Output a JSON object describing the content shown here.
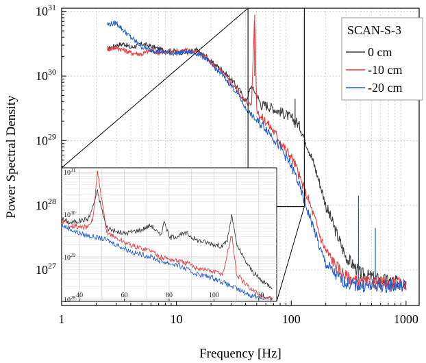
{
  "chart_data": {
    "type": "line",
    "xlabel": "Frequency [Hz]",
    "ylabel": "Power Spectral Density",
    "x_scale": "log",
    "y_scale": "log",
    "xlim": [
      1,
      1300
    ],
    "ylim_log10": [
      26.45,
      31.05
    ],
    "x_ticks": [
      {
        "value": 1,
        "label": "1"
      },
      {
        "value": 10,
        "label": "10"
      },
      {
        "value": 100,
        "label": "100"
      },
      {
        "value": 1000,
        "label": "1000"
      }
    ],
    "y_ticks": [
      {
        "exp": 27,
        "base": "10",
        "sup": "27"
      },
      {
        "exp": 28,
        "base": "10",
        "sup": "28"
      },
      {
        "exp": 29,
        "base": "10",
        "sup": "29"
      },
      {
        "exp": 30,
        "base": "10",
        "sup": "30"
      },
      {
        "exp": 31,
        "base": "10",
        "sup": "31"
      }
    ],
    "grid": true,
    "legend": {
      "title": "SCAN-S-3",
      "placement": "top-right",
      "entries": [
        "0 cm",
        "-10 cm",
        "-20 cm"
      ]
    },
    "series": [
      {
        "name": "0 cm",
        "color": "#3a3a3a",
        "points": [
          [
            2.5,
            30.42
          ],
          [
            3,
            30.48
          ],
          [
            3.5,
            30.5
          ],
          [
            4,
            30.44
          ],
          [
            5,
            30.5
          ],
          [
            6,
            30.46
          ],
          [
            7,
            30.42
          ],
          [
            8,
            30.4
          ],
          [
            10,
            30.38
          ],
          [
            12,
            30.36
          ],
          [
            15,
            30.4
          ],
          [
            18,
            30.3
          ],
          [
            20,
            30.22
          ],
          [
            25,
            30.1
          ],
          [
            30,
            29.95
          ],
          [
            35,
            29.8
          ],
          [
            40,
            29.6
          ],
          [
            45,
            29.85
          ],
          [
            50,
            29.7
          ],
          [
            55,
            29.55
          ],
          [
            60,
            29.55
          ],
          [
            70,
            29.5
          ],
          [
            80,
            29.45
          ],
          [
            90,
            29.4
          ],
          [
            100,
            29.35
          ],
          [
            110,
            29.3
          ],
          [
            120,
            29.2
          ],
          [
            140,
            28.9
          ],
          [
            160,
            28.6
          ],
          [
            180,
            28.3
          ],
          [
            200,
            28.0
          ],
          [
            250,
            27.55
          ],
          [
            300,
            27.2
          ],
          [
            400,
            26.95
          ],
          [
            600,
            26.85
          ],
          [
            1000,
            26.8
          ]
        ]
      },
      {
        "name": "-10 cm",
        "color": "#e8393c",
        "points": [
          [
            2.5,
            30.42
          ],
          [
            3,
            30.44
          ],
          [
            3.5,
            30.4
          ],
          [
            4,
            30.36
          ],
          [
            5,
            30.34
          ],
          [
            6,
            30.4
          ],
          [
            7,
            30.36
          ],
          [
            8,
            30.36
          ],
          [
            10,
            30.38
          ],
          [
            12,
            30.4
          ],
          [
            15,
            30.38
          ],
          [
            18,
            30.3
          ],
          [
            20,
            30.2
          ],
          [
            25,
            30.05
          ],
          [
            30,
            29.9
          ],
          [
            35,
            29.75
          ],
          [
            40,
            29.6
          ],
          [
            45,
            29.55
          ],
          [
            48,
            30.95
          ],
          [
            50,
            29.5
          ],
          [
            55,
            29.35
          ],
          [
            60,
            29.3
          ],
          [
            70,
            29.15
          ],
          [
            80,
            29.0
          ],
          [
            90,
            28.85
          ],
          [
            100,
            28.75
          ],
          [
            110,
            28.6
          ],
          [
            120,
            28.4
          ],
          [
            140,
            28.1
          ],
          [
            160,
            27.8
          ],
          [
            180,
            27.5
          ],
          [
            200,
            27.3
          ],
          [
            250,
            27.05
          ],
          [
            300,
            26.9
          ],
          [
            400,
            26.8
          ],
          [
            600,
            26.8
          ],
          [
            1000,
            26.78
          ]
        ]
      },
      {
        "name": "-20 cm",
        "color": "#1f5fd1",
        "points": [
          [
            2.5,
            30.8
          ],
          [
            3,
            30.82
          ],
          [
            3.5,
            30.7
          ],
          [
            4,
            30.6
          ],
          [
            5,
            30.45
          ],
          [
            6,
            30.4
          ],
          [
            7,
            30.38
          ],
          [
            8,
            30.36
          ],
          [
            10,
            30.35
          ],
          [
            12,
            30.38
          ],
          [
            15,
            30.35
          ],
          [
            18,
            30.28
          ],
          [
            20,
            30.18
          ],
          [
            25,
            30.02
          ],
          [
            30,
            29.85
          ],
          [
            35,
            29.7
          ],
          [
            40,
            29.5
          ],
          [
            45,
            29.4
          ],
          [
            50,
            29.3
          ],
          [
            55,
            29.25
          ],
          [
            60,
            29.2
          ],
          [
            70,
            29.05
          ],
          [
            80,
            28.9
          ],
          [
            90,
            28.75
          ],
          [
            100,
            28.6
          ],
          [
            110,
            28.45
          ],
          [
            120,
            28.25
          ],
          [
            140,
            27.9
          ],
          [
            160,
            27.6
          ],
          [
            180,
            27.3
          ],
          [
            200,
            27.1
          ],
          [
            250,
            26.9
          ],
          [
            300,
            26.8
          ],
          [
            400,
            26.75
          ],
          [
            600,
            26.75
          ],
          [
            1000,
            26.75
          ]
        ]
      }
    ],
    "inset": {
      "xlim": [
        32,
        128
      ],
      "x_ticks": [
        {
          "value": 40,
          "label": "40"
        },
        {
          "value": 60,
          "label": "60"
        },
        {
          "value": 80,
          "label": "80"
        },
        {
          "value": 100,
          "label": "100"
        },
        {
          "value": 120,
          "label": "120"
        }
      ],
      "ylim_log10": [
        27.95,
        31.1
      ],
      "y_ticks": [
        {
          "exp": 28,
          "base": "10",
          "sup": "28"
        },
        {
          "exp": 29,
          "base": "10",
          "sup": "29"
        },
        {
          "exp": 30,
          "base": "10",
          "sup": "30"
        },
        {
          "exp": 31,
          "base": "10",
          "sup": "31"
        }
      ],
      "source_region": {
        "xlim": [
          42,
          130
        ],
        "ylim_log10": [
          27.98,
          31.05
        ]
      },
      "series": [
        {
          "name": "0 cm",
          "color": "#3a3a3a",
          "points": [
            [
              32,
              29.9
            ],
            [
              36,
              29.8
            ],
            [
              40,
              29.85
            ],
            [
              44,
              29.9
            ],
            [
              46,
              30.2
            ],
            [
              48,
              30.55
            ],
            [
              50,
              30.1
            ],
            [
              52,
              29.7
            ],
            [
              56,
              29.6
            ],
            [
              60,
              29.55
            ],
            [
              64,
              29.6
            ],
            [
              68,
              29.65
            ],
            [
              72,
              29.75
            ],
            [
              76,
              29.5
            ],
            [
              78,
              29.85
            ],
            [
              80,
              29.45
            ],
            [
              84,
              29.5
            ],
            [
              88,
              29.55
            ],
            [
              92,
              29.4
            ],
            [
              96,
              29.35
            ],
            [
              100,
              29.3
            ],
            [
              104,
              29.25
            ],
            [
              106,
              29.4
            ],
            [
              108,
              30.0
            ],
            [
              110,
              29.3
            ],
            [
              114,
              28.9
            ],
            [
              118,
              28.6
            ],
            [
              122,
              28.4
            ],
            [
              126,
              28.3
            ]
          ]
        },
        {
          "name": "-10 cm",
          "color": "#e8393c",
          "points": [
            [
              32,
              29.85
            ],
            [
              36,
              29.75
            ],
            [
              40,
              29.7
            ],
            [
              44,
              29.7
            ],
            [
              46,
              29.9
            ],
            [
              48,
              31.0
            ],
            [
              50,
              30.3
            ],
            [
              52,
              29.6
            ],
            [
              56,
              29.45
            ],
            [
              60,
              29.35
            ],
            [
              64,
              29.25
            ],
            [
              68,
              29.2
            ],
            [
              72,
              29.15
            ],
            [
              76,
              29.0
            ],
            [
              80,
              28.95
            ],
            [
              84,
              28.9
            ],
            [
              88,
              28.85
            ],
            [
              92,
              28.75
            ],
            [
              96,
              28.7
            ],
            [
              100,
              28.65
            ],
            [
              104,
              28.6
            ],
            [
              108,
              29.55
            ],
            [
              110,
              28.6
            ],
            [
              114,
              28.35
            ],
            [
              118,
              28.2
            ],
            [
              122,
              28.05
            ],
            [
              126,
              28.0
            ]
          ]
        },
        {
          "name": "-20 cm",
          "color": "#1f5fd1",
          "points": [
            [
              32,
              29.75
            ],
            [
              36,
              29.65
            ],
            [
              40,
              29.55
            ],
            [
              44,
              29.5
            ],
            [
              48,
              29.45
            ],
            [
              52,
              29.4
            ],
            [
              56,
              29.3
            ],
            [
              60,
              29.2
            ],
            [
              64,
              29.1
            ],
            [
              68,
              29.05
            ],
            [
              72,
              29.0
            ],
            [
              76,
              28.9
            ],
            [
              80,
              28.85
            ],
            [
              84,
              28.8
            ],
            [
              88,
              28.7
            ],
            [
              92,
              28.6
            ],
            [
              96,
              28.55
            ],
            [
              100,
              28.5
            ],
            [
              104,
              28.4
            ],
            [
              108,
              28.3
            ],
            [
              112,
              28.2
            ],
            [
              116,
              28.1
            ],
            [
              120,
              28.05
            ],
            [
              126,
              27.98
            ]
          ]
        }
      ]
    }
  }
}
